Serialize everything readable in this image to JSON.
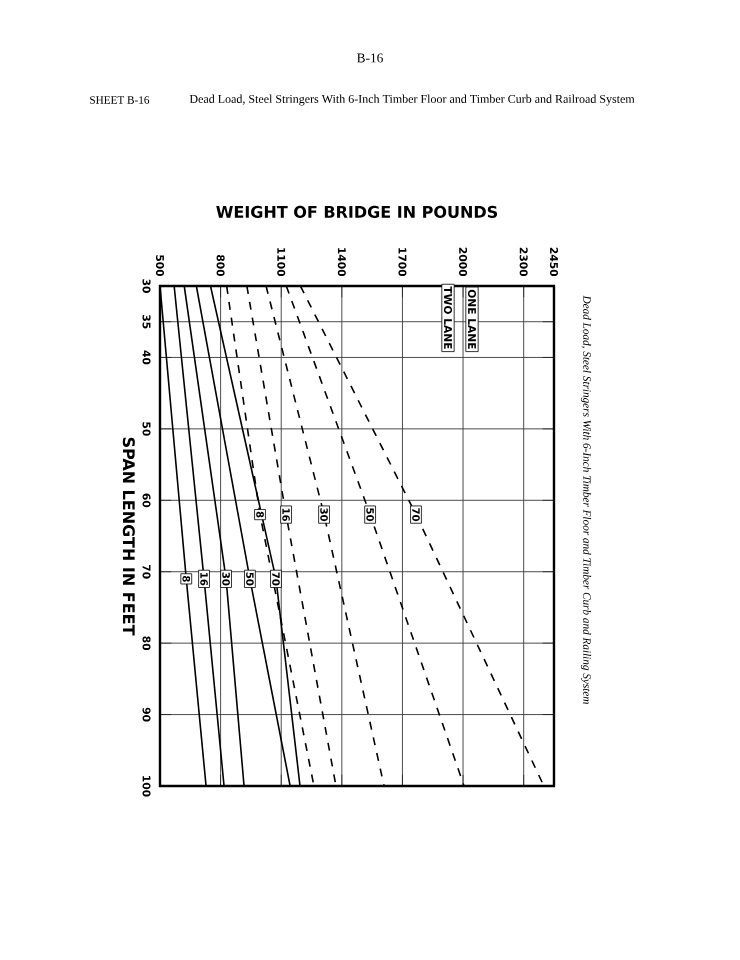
{
  "chart_data": {
    "type": "line",
    "title": "Dead Load, Steel Stringers With 6-Inch Timber Floor and Timber Curb and Railroad System",
    "subtitle": "SHEET B-16",
    "xlabel": "WEIGHT OF BRIDGE IN POUNDS",
    "ylabel": "SPAN LENGTH IN FEET",
    "annotations": [
      "B-16",
      "Dead Load, Steel Stringers With 6-Inch Timber Floor and Timber Curb and Railing System",
      "ONE LANE",
      "TWO LANE"
    ],
    "xlim": [
      500,
      2450
    ],
    "xticks": [
      500,
      800,
      1100,
      1400,
      1700,
      2000,
      2300,
      2450
    ],
    "ylim": [
      100,
      30
    ],
    "yticks": [
      30,
      35,
      40,
      50,
      60,
      70,
      80,
      90,
      100
    ],
    "grid": true,
    "marker": "none",
    "series": [
      {
        "name": "8",
        "color": "#000000",
        "line_style": "solid",
        "x": [
          500,
          630,
          728
        ],
        "values": [
          30,
          71,
          100
        ]
      },
      {
        "name": "16",
        "color": "#000000",
        "line_style": "solid",
        "x": [
          570,
          718,
          817
        ],
        "values": [
          30,
          71,
          100
        ]
      },
      {
        "name": "30",
        "color": "#000000",
        "line_style": "solid",
        "x": [
          620,
          827,
          916
        ],
        "values": [
          30,
          71,
          100
        ]
      },
      {
        "name": "50",
        "color": "#000000",
        "line_style": "solid",
        "x": [
          680,
          945,
          1144
        ],
        "values": [
          30,
          71,
          100
        ]
      },
      {
        "name": "70",
        "color": "#000000",
        "line_style": "solid",
        "x": [
          750,
          1074,
          1193
        ],
        "values": [
          30,
          71,
          100
        ]
      },
      {
        "name": "8",
        "color": "#000000",
        "line_style": "dashed",
        "x": [
          830,
          995,
          1262
        ],
        "values": [
          30,
          62,
          100
        ]
      },
      {
        "name": "16",
        "color": "#000000",
        "line_style": "dashed",
        "x": [
          930,
          1124,
          1371
        ],
        "values": [
          30,
          62,
          100
        ]
      },
      {
        "name": "30",
        "color": "#000000",
        "line_style": "dashed",
        "x": [
          1025,
          1312,
          1609
        ],
        "values": [
          30,
          62,
          100
        ]
      },
      {
        "name": "50",
        "color": "#000000",
        "line_style": "dashed",
        "x": [
          1125,
          1540,
          2005
        ],
        "values": [
          30,
          62,
          100
        ]
      },
      {
        "name": "70",
        "color": "#000000",
        "line_style": "dashed",
        "x": [
          1195,
          1767,
          2400
        ],
        "values": [
          30,
          62,
          100
        ]
      }
    ]
  }
}
